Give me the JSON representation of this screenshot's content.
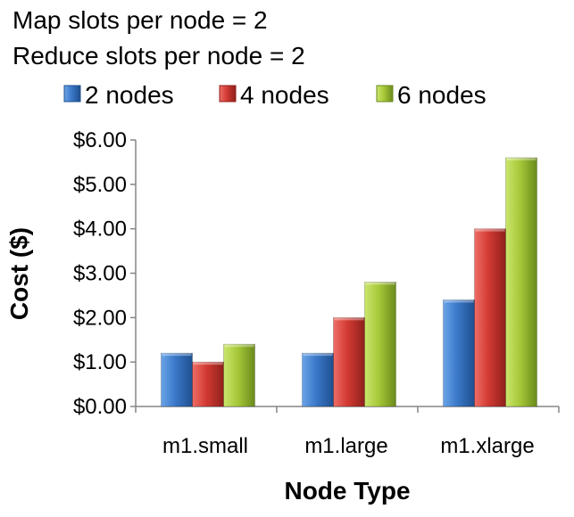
{
  "annotations": [
    "Map slots per node = 2",
    "Reduce slots per node = 2"
  ],
  "chart_data": {
    "type": "bar",
    "title": "",
    "xlabel": "Node Type",
    "ylabel": "Cost ($)",
    "categories": [
      "m1.small",
      "m1.large",
      "m1.xlarge"
    ],
    "series": [
      {
        "name": "2 nodes",
        "values": [
          1.2,
          1.2,
          2.4
        ],
        "color": "#3a78c8"
      },
      {
        "name": "4 nodes",
        "values": [
          1.0,
          2.0,
          4.0
        ],
        "color": "#d23a33"
      },
      {
        "name": "6 nodes",
        "values": [
          1.4,
          2.8,
          5.6
        ],
        "color": "#a6c838"
      }
    ],
    "ylim": [
      0,
      6
    ],
    "yticks": [
      0,
      1,
      2,
      3,
      4,
      5,
      6
    ],
    "ytick_labels": [
      "$0.00",
      "$1.00",
      "$2.00",
      "$3.00",
      "$4.00",
      "$5.00",
      "$6.00"
    ],
    "legend": "top",
    "grid": false
  }
}
